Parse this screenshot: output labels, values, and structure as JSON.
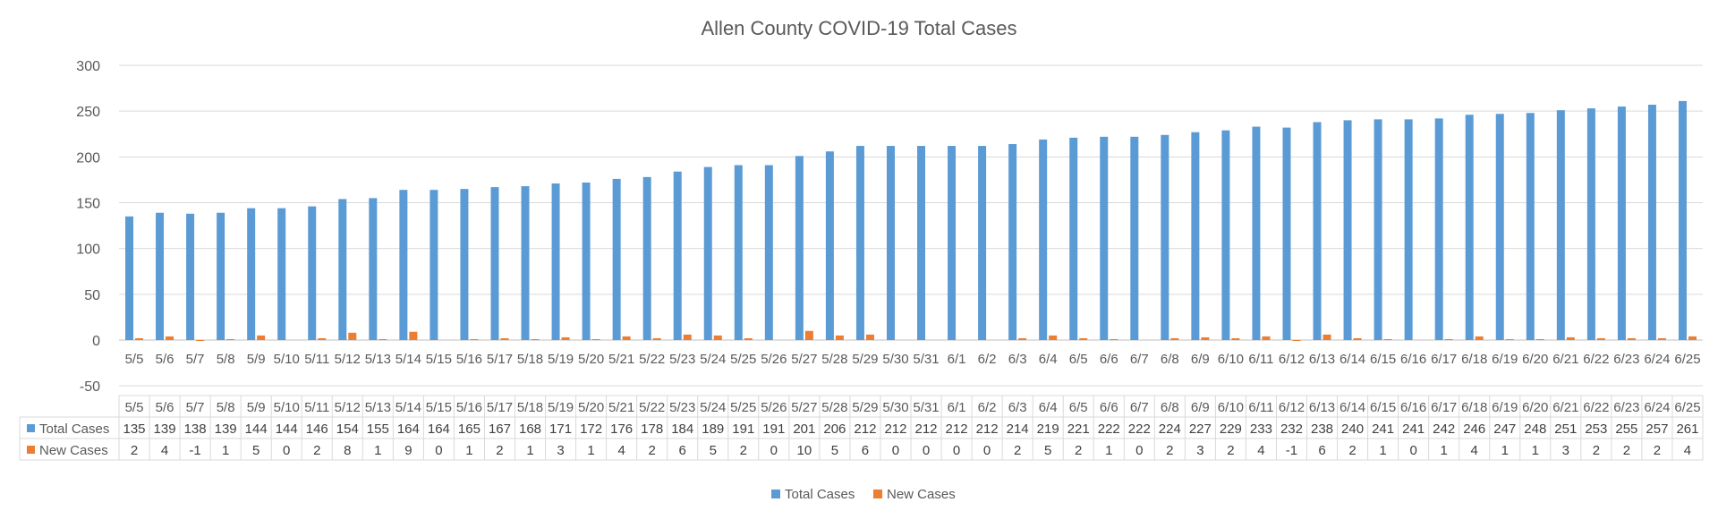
{
  "chart_data": {
    "type": "bar",
    "title": "Allen County COVID-19 Total Cases",
    "categories": [
      "5/5",
      "5/6",
      "5/7",
      "5/8",
      "5/9",
      "5/10",
      "5/11",
      "5/12",
      "5/13",
      "5/14",
      "5/15",
      "5/16",
      "5/17",
      "5/18",
      "5/19",
      "5/20",
      "5/21",
      "5/22",
      "5/23",
      "5/24",
      "5/25",
      "5/26",
      "5/27",
      "5/28",
      "5/29",
      "5/30",
      "5/31",
      "6/1",
      "6/2",
      "6/3",
      "6/4",
      "6/5",
      "6/6",
      "6/7",
      "6/8",
      "6/9",
      "6/10",
      "6/11",
      "6/12",
      "6/13",
      "6/14",
      "6/15",
      "6/16",
      "6/17",
      "6/18",
      "6/19",
      "6/20",
      "6/21",
      "6/22",
      "6/23",
      "6/24",
      "6/25"
    ],
    "series": [
      {
        "name": "Total Cases",
        "color": "#5b9bd5",
        "values": [
          135,
          139,
          138,
          139,
          144,
          144,
          146,
          154,
          155,
          164,
          164,
          165,
          167,
          168,
          171,
          172,
          176,
          178,
          184,
          189,
          191,
          191,
          201,
          206,
          212,
          212,
          212,
          212,
          212,
          214,
          219,
          221,
          222,
          222,
          224,
          227,
          229,
          233,
          232,
          238,
          240,
          241,
          241,
          242,
          246,
          247,
          248,
          251,
          253,
          255,
          257,
          261
        ]
      },
      {
        "name": "New Cases",
        "color": "#ed7d31",
        "values": [
          2,
          4,
          -1,
          1,
          5,
          0,
          2,
          8,
          1,
          9,
          0,
          1,
          2,
          1,
          3,
          1,
          4,
          2,
          6,
          5,
          2,
          0,
          10,
          5,
          6,
          0,
          0,
          0,
          0,
          2,
          5,
          2,
          1,
          0,
          2,
          3,
          2,
          4,
          -1,
          6,
          2,
          1,
          0,
          1,
          4,
          1,
          1,
          3,
          2,
          2,
          2,
          4
        ]
      }
    ],
    "ylim": [
      -50,
      300
    ],
    "yticks": [
      300,
      250,
      200,
      150,
      100,
      50,
      0,
      -50
    ],
    "grid": true,
    "legend": "bottom",
    "data_table": true
  }
}
